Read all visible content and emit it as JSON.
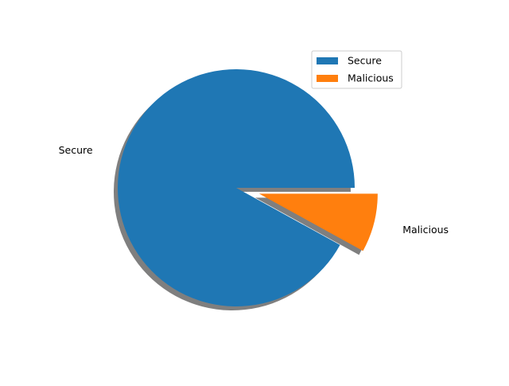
{
  "chart_data": {
    "type": "pie",
    "title": "",
    "categories": [
      "Secure",
      "Malicious"
    ],
    "values": [
      92,
      8
    ],
    "colors": [
      "#1f77b4",
      "#ff7f0e"
    ],
    "shadow_color": "#7f7f7f",
    "explode": [
      0,
      0.2
    ],
    "start_angle_deg": 0,
    "shadow": true,
    "legend": {
      "placement": "top-right",
      "entries": [
        "Secure",
        "Malicious"
      ]
    }
  }
}
